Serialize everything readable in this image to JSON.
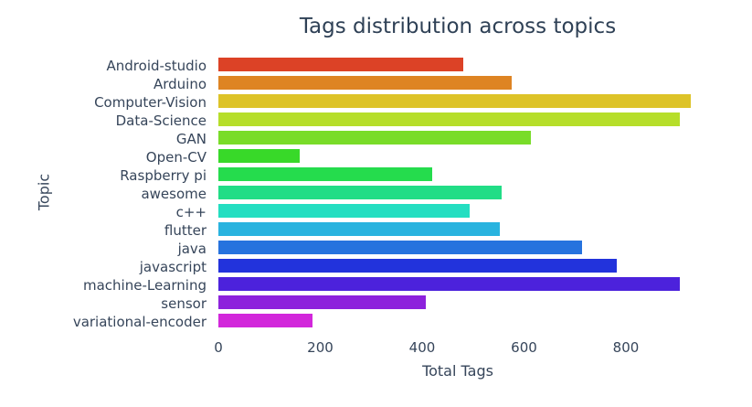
{
  "chart_data": {
    "type": "bar",
    "orientation": "horizontal",
    "title": "Tags distribution across topics",
    "xlabel": "Total Tags",
    "ylabel": "Topic",
    "categories": [
      "Android-studio",
      "Arduino",
      "Computer-Vision",
      "Data-Science",
      "GAN",
      "Open-CV",
      "Raspberry pi",
      "awesome",
      "c++",
      "flutter",
      "java",
      "javascript",
      "machine-Learning",
      "sensor",
      "variational-encoder"
    ],
    "values": [
      480,
      575,
      928,
      905,
      614,
      160,
      420,
      556,
      493,
      553,
      714,
      782,
      906,
      407,
      185
    ],
    "colors": [
      "#dc4226",
      "#de8423",
      "#ddc328",
      "#b6de2a",
      "#79dc29",
      "#38d929",
      "#25dc4d",
      "#21dd86",
      "#23dec1",
      "#29b3df",
      "#2673de",
      "#2233dc",
      "#4c22dc",
      "#8d22dc",
      "#d227db"
    ],
    "xticks": [
      0,
      200,
      400,
      600,
      800
    ],
    "xlim": [
      0,
      940
    ],
    "grid": false,
    "legend": "none",
    "text_color": "#36455a",
    "background_color": "#ffffff"
  }
}
